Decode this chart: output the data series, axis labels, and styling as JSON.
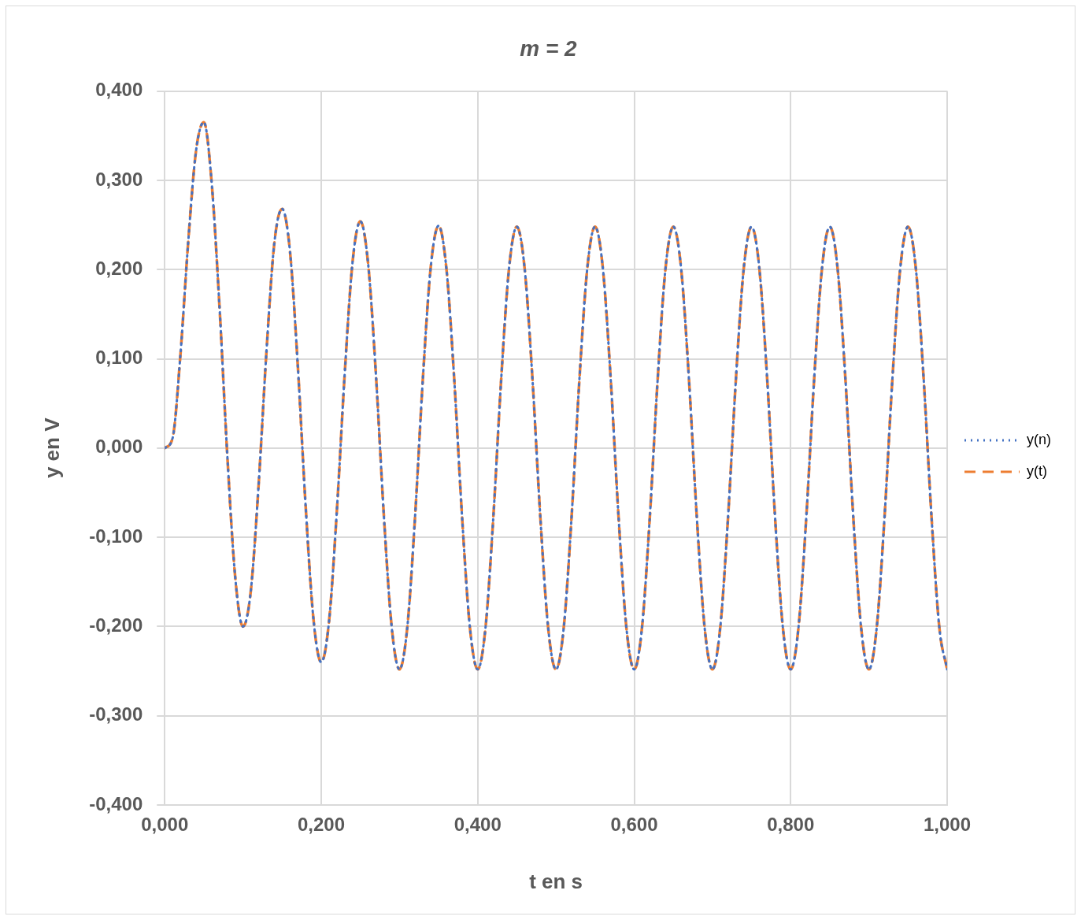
{
  "chart_data": {
    "type": "line",
    "title": "m = 2",
    "xlabel": "t en s",
    "ylabel": "y en V",
    "x": [
      0,
      0.01,
      0.02,
      0.03,
      0.04,
      0.05,
      0.06,
      0.07,
      0.08,
      0.09,
      0.1,
      0.11,
      0.12,
      0.13,
      0.14,
      0.15,
      0.16,
      0.17,
      0.18,
      0.19,
      0.2,
      0.21,
      0.22,
      0.23,
      0.24,
      0.25,
      0.26,
      0.27,
      0.28,
      0.29,
      0.3,
      0.31,
      0.32,
      0.33,
      0.34,
      0.35,
      0.36,
      0.37,
      0.38,
      0.39,
      0.4,
      0.41,
      0.42,
      0.43,
      0.44,
      0.45,
      0.46,
      0.47,
      0.48,
      0.49,
      0.5,
      0.51,
      0.52,
      0.53,
      0.54,
      0.55,
      0.56,
      0.57,
      0.58,
      0.59,
      0.6,
      0.61,
      0.62,
      0.63,
      0.64,
      0.65,
      0.66,
      0.67,
      0.68,
      0.69,
      0.7,
      0.71,
      0.72,
      0.73,
      0.74,
      0.75,
      0.76,
      0.77,
      0.78,
      0.79,
      0.8,
      0.81,
      0.82,
      0.83,
      0.84,
      0.85,
      0.86,
      0.87,
      0.88,
      0.89,
      0.9,
      0.91,
      0.92,
      0.93,
      0.94,
      0.95,
      0.96,
      0.97,
      0.98,
      0.99,
      1.0
    ],
    "series": [
      {
        "name": "y(n)",
        "color": "#4472c4",
        "line_style": "dotted",
        "values": [
          0,
          0.011,
          0.104,
          0.231,
          0.333,
          0.365,
          0.297,
          0.158,
          -0.009,
          -0.144,
          -0.2,
          -0.16,
          -0.041,
          0.108,
          0.229,
          0.268,
          0.221,
          0.093,
          -0.064,
          -0.191,
          -0.24,
          -0.194,
          -0.07,
          0.083,
          0.208,
          0.254,
          0.206,
          0.081,
          -0.075,
          -0.2,
          -0.248,
          -0.201,
          -0.076,
          0.079,
          0.203,
          0.249,
          0.201,
          0.077,
          -0.077,
          -0.201,
          -0.248,
          -0.201,
          -0.077,
          0.077,
          0.201,
          0.248,
          0.201,
          0.077,
          -0.077,
          -0.201,
          -0.248,
          -0.201,
          -0.077,
          0.077,
          0.201,
          0.248,
          0.201,
          0.077,
          -0.077,
          -0.201,
          -0.248,
          -0.201,
          -0.077,
          0.077,
          0.201,
          0.248,
          0.201,
          0.077,
          -0.077,
          -0.201,
          -0.248,
          -0.201,
          -0.077,
          0.077,
          0.201,
          0.248,
          0.201,
          0.077,
          -0.077,
          -0.201,
          -0.248,
          -0.201,
          -0.077,
          0.077,
          0.201,
          0.248,
          0.201,
          0.077,
          -0.077,
          -0.201,
          -0.248,
          -0.201,
          -0.077,
          0.077,
          0.201,
          0.248,
          0.201,
          0.077,
          -0.077,
          -0.201,
          -0.248
        ]
      },
      {
        "name": "y(t)",
        "color": "#ed7d31",
        "line_style": "dashed",
        "values": [
          0,
          0.011,
          0.104,
          0.231,
          0.333,
          0.365,
          0.297,
          0.158,
          -0.009,
          -0.144,
          -0.2,
          -0.16,
          -0.041,
          0.108,
          0.229,
          0.268,
          0.221,
          0.093,
          -0.064,
          -0.191,
          -0.24,
          -0.194,
          -0.07,
          0.083,
          0.208,
          0.254,
          0.206,
          0.081,
          -0.075,
          -0.2,
          -0.248,
          -0.201,
          -0.076,
          0.079,
          0.203,
          0.249,
          0.201,
          0.077,
          -0.077,
          -0.201,
          -0.248,
          -0.201,
          -0.077,
          0.077,
          0.201,
          0.248,
          0.201,
          0.077,
          -0.077,
          -0.201,
          -0.248,
          -0.201,
          -0.077,
          0.077,
          0.201,
          0.248,
          0.201,
          0.077,
          -0.077,
          -0.201,
          -0.248,
          -0.201,
          -0.077,
          0.077,
          0.201,
          0.248,
          0.201,
          0.077,
          -0.077,
          -0.201,
          -0.248,
          -0.201,
          -0.077,
          0.077,
          0.201,
          0.248,
          0.201,
          0.077,
          -0.077,
          -0.201,
          -0.248,
          -0.201,
          -0.077,
          0.077,
          0.201,
          0.248,
          0.201,
          0.077,
          -0.077,
          -0.201,
          -0.248,
          -0.201,
          -0.077,
          0.077,
          0.201,
          0.248,
          0.201,
          0.077,
          -0.077,
          -0.201,
          -0.248
        ]
      }
    ],
    "xlim": [
      0,
      1
    ],
    "xticks": [
      {
        "value": 0,
        "label": "0,000"
      },
      {
        "value": 0.2,
        "label": "0,200"
      },
      {
        "value": 0.4,
        "label": "0,400"
      },
      {
        "value": 0.6,
        "label": "0,600"
      },
      {
        "value": 0.8,
        "label": "0,800"
      },
      {
        "value": 1,
        "label": "1,000"
      }
    ],
    "ylim": [
      -0.4,
      0.4
    ],
    "yticks": [
      {
        "value": -0.4,
        "label": "-0,400"
      },
      {
        "value": -0.3,
        "label": "-0,300"
      },
      {
        "value": -0.2,
        "label": "-0,200"
      },
      {
        "value": -0.1,
        "label": "-0,100"
      },
      {
        "value": 0,
        "label": "0,000"
      },
      {
        "value": 0.1,
        "label": "0,100"
      },
      {
        "value": 0.2,
        "label": "0,200"
      },
      {
        "value": 0.3,
        "label": "0,300"
      },
      {
        "value": 0.4,
        "label": "0,400"
      }
    ],
    "grid": true,
    "legend": "right",
    "marker": "none"
  }
}
